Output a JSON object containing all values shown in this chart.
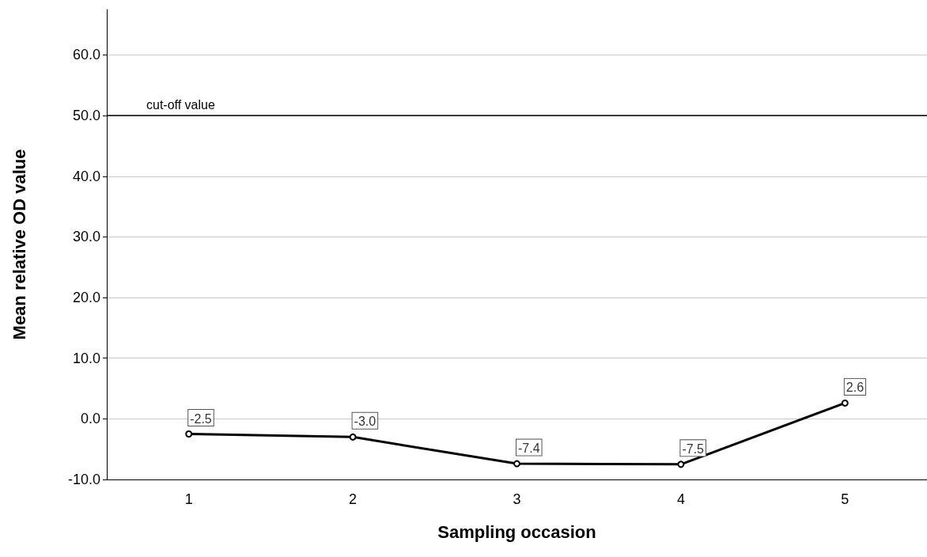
{
  "chart_data": {
    "type": "line",
    "xlabel": "Sampling occasion",
    "ylabel": "Mean relative OD value",
    "categories": [
      "1",
      "2",
      "3",
      "4",
      "5"
    ],
    "series": [
      {
        "color": "#000000",
        "values": [
          -2.5,
          -3.0,
          -7.4,
          -7.5,
          2.6
        ],
        "value_labels": [
          "-2.5",
          "-3.0",
          "-7.4",
          "-7.5",
          "2.6"
        ]
      }
    ],
    "ylim": [
      -10,
      67.5
    ],
    "yticks": [
      {
        "value": -10,
        "label": "-10.0"
      },
      {
        "value": 0,
        "label": "0.0"
      },
      {
        "value": 10,
        "label": "10.0"
      },
      {
        "value": 20,
        "label": "20.0"
      },
      {
        "value": 30,
        "label": "30.0"
      },
      {
        "value": 40,
        "label": "40.0"
      },
      {
        "value": 50,
        "label": "50.0"
      },
      {
        "value": 60,
        "label": "60.0"
      }
    ],
    "ref_lines": [
      {
        "axis": "y",
        "value": 50,
        "label": "cut-off value",
        "color": "#000000"
      }
    ],
    "grid": "y",
    "marker": "circle",
    "line_style": "solid"
  }
}
